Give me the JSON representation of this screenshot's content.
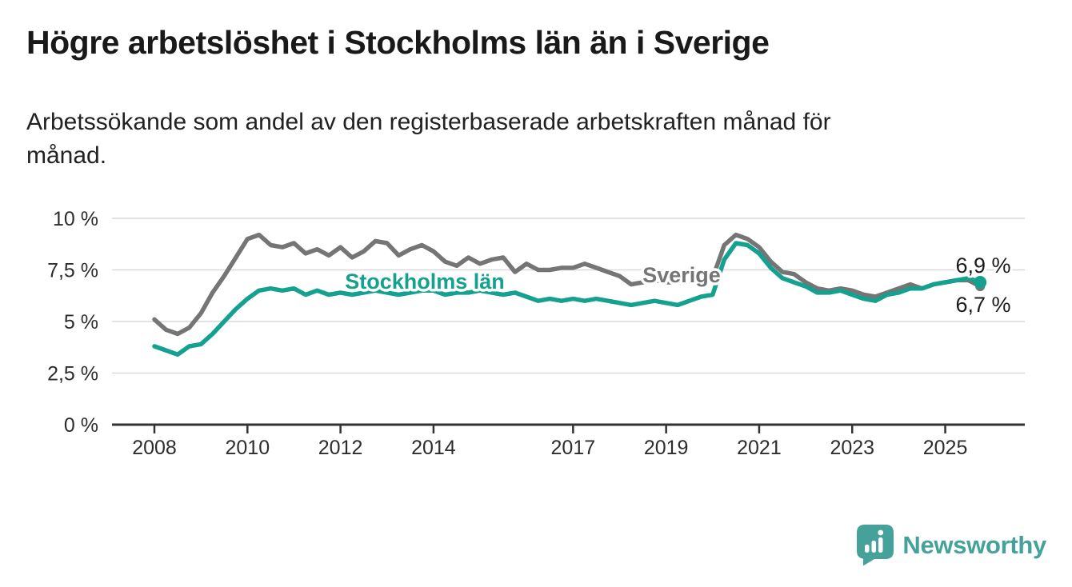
{
  "header": {
    "title": "Högre arbetslöshet i Stockholms län än i Sverige",
    "subtitle": "Arbetssökande som andel av den registerbaserade arbetskraften månad för\nmånad."
  },
  "chart_data": {
    "type": "line",
    "title": "Högre arbetslöshet i Stockholms län än i Sverige",
    "subtitle": "Arbetssökande som andel av den registerbaserade arbetskraften månad för månad.",
    "x_unit": "year (monthly data)",
    "y_unit": "percent",
    "grid": true,
    "legend_position": "inline-labels",
    "xlim": [
      2007.1,
      2026.7
    ],
    "ylim": [
      0,
      10.5
    ],
    "x_ticks": [
      2008,
      2010,
      2012,
      2014,
      2017,
      2019,
      2021,
      2023,
      2025
    ],
    "x_tick_labels": [
      "2008",
      "2010",
      "2012",
      "2014",
      "2017",
      "2019",
      "2021",
      "2023",
      "2025"
    ],
    "y_tick_values": [
      10,
      7.5,
      5,
      2.5,
      0
    ],
    "y_ticks": [
      "10 %",
      "7,5 %",
      "5 %",
      "2,5 %",
      "0 %"
    ],
    "x": [
      2008.0,
      2008.25,
      2008.5,
      2008.75,
      2009.0,
      2009.25,
      2009.5,
      2009.75,
      2010.0,
      2010.25,
      2010.5,
      2010.75,
      2011.0,
      2011.25,
      2011.5,
      2011.75,
      2012.0,
      2012.25,
      2012.5,
      2012.75,
      2013.0,
      2013.25,
      2013.5,
      2013.75,
      2014.0,
      2014.25,
      2014.5,
      2014.75,
      2015.0,
      2015.25,
      2015.5,
      2015.75,
      2016.0,
      2016.25,
      2016.5,
      2016.75,
      2017.0,
      2017.25,
      2017.5,
      2017.75,
      2018.0,
      2018.25,
      2018.5,
      2018.75,
      2019.0,
      2019.25,
      2019.5,
      2019.75,
      2020.0,
      2020.25,
      2020.5,
      2020.75,
      2021.0,
      2021.25,
      2021.5,
      2021.75,
      2022.0,
      2022.25,
      2022.5,
      2022.75,
      2023.0,
      2023.25,
      2023.5,
      2023.75,
      2024.0,
      2024.25,
      2024.5,
      2024.75,
      2025.0,
      2025.25,
      2025.5,
      2025.75
    ],
    "series": [
      {
        "name": "Sverige",
        "color": "#757575",
        "end_label": "6,7 %",
        "end_value": 6.7,
        "values": [
          5.1,
          4.6,
          4.4,
          4.7,
          5.4,
          6.4,
          7.2,
          8.1,
          9.0,
          9.2,
          8.7,
          8.6,
          8.8,
          8.3,
          8.5,
          8.2,
          8.6,
          8.1,
          8.4,
          8.9,
          8.8,
          8.2,
          8.5,
          8.7,
          8.4,
          7.9,
          7.7,
          8.1,
          7.8,
          8.0,
          8.1,
          7.4,
          7.8,
          7.5,
          7.5,
          7.6,
          7.6,
          7.8,
          7.6,
          7.4,
          7.2,
          6.8,
          6.9,
          7.0,
          6.9,
          6.9,
          7.0,
          6.9,
          7.1,
          8.7,
          9.2,
          9.0,
          8.6,
          7.9,
          7.4,
          7.3,
          6.9,
          6.6,
          6.5,
          6.6,
          6.5,
          6.3,
          6.2,
          6.4,
          6.6,
          6.8,
          6.6,
          6.8,
          6.9,
          7.0,
          7.0,
          6.7
        ]
      },
      {
        "name": "Stockholms län",
        "color": "#15a190",
        "end_label": "6,9 %",
        "end_value": 6.9,
        "values": [
          3.8,
          3.6,
          3.4,
          3.8,
          3.9,
          4.4,
          5.0,
          5.6,
          6.1,
          6.5,
          6.6,
          6.5,
          6.6,
          6.3,
          6.5,
          6.3,
          6.4,
          6.3,
          6.4,
          6.5,
          6.4,
          6.3,
          6.4,
          6.5,
          6.5,
          6.3,
          6.4,
          6.4,
          6.5,
          6.4,
          6.3,
          6.4,
          6.2,
          6.0,
          6.1,
          6.0,
          6.1,
          6.0,
          6.1,
          6.0,
          5.9,
          5.8,
          5.9,
          6.0,
          5.9,
          5.8,
          6.0,
          6.2,
          6.3,
          8.0,
          8.8,
          8.7,
          8.3,
          7.6,
          7.1,
          6.9,
          6.7,
          6.4,
          6.4,
          6.5,
          6.3,
          6.1,
          6.0,
          6.3,
          6.4,
          6.6,
          6.6,
          6.8,
          6.9,
          7.0,
          7.1,
          6.9
        ]
      }
    ]
  },
  "colors": {
    "accent_teal": "#15a190",
    "line_gray": "#757575",
    "axis": "#333333",
    "gridline": "#d9d9d9",
    "text_dark": "#1c1c1c",
    "brand_teal": "#45a29a"
  },
  "footer": {
    "brand": "Newsworthy",
    "logo_icon": "speech-bubble-bar-chart-icon"
  }
}
